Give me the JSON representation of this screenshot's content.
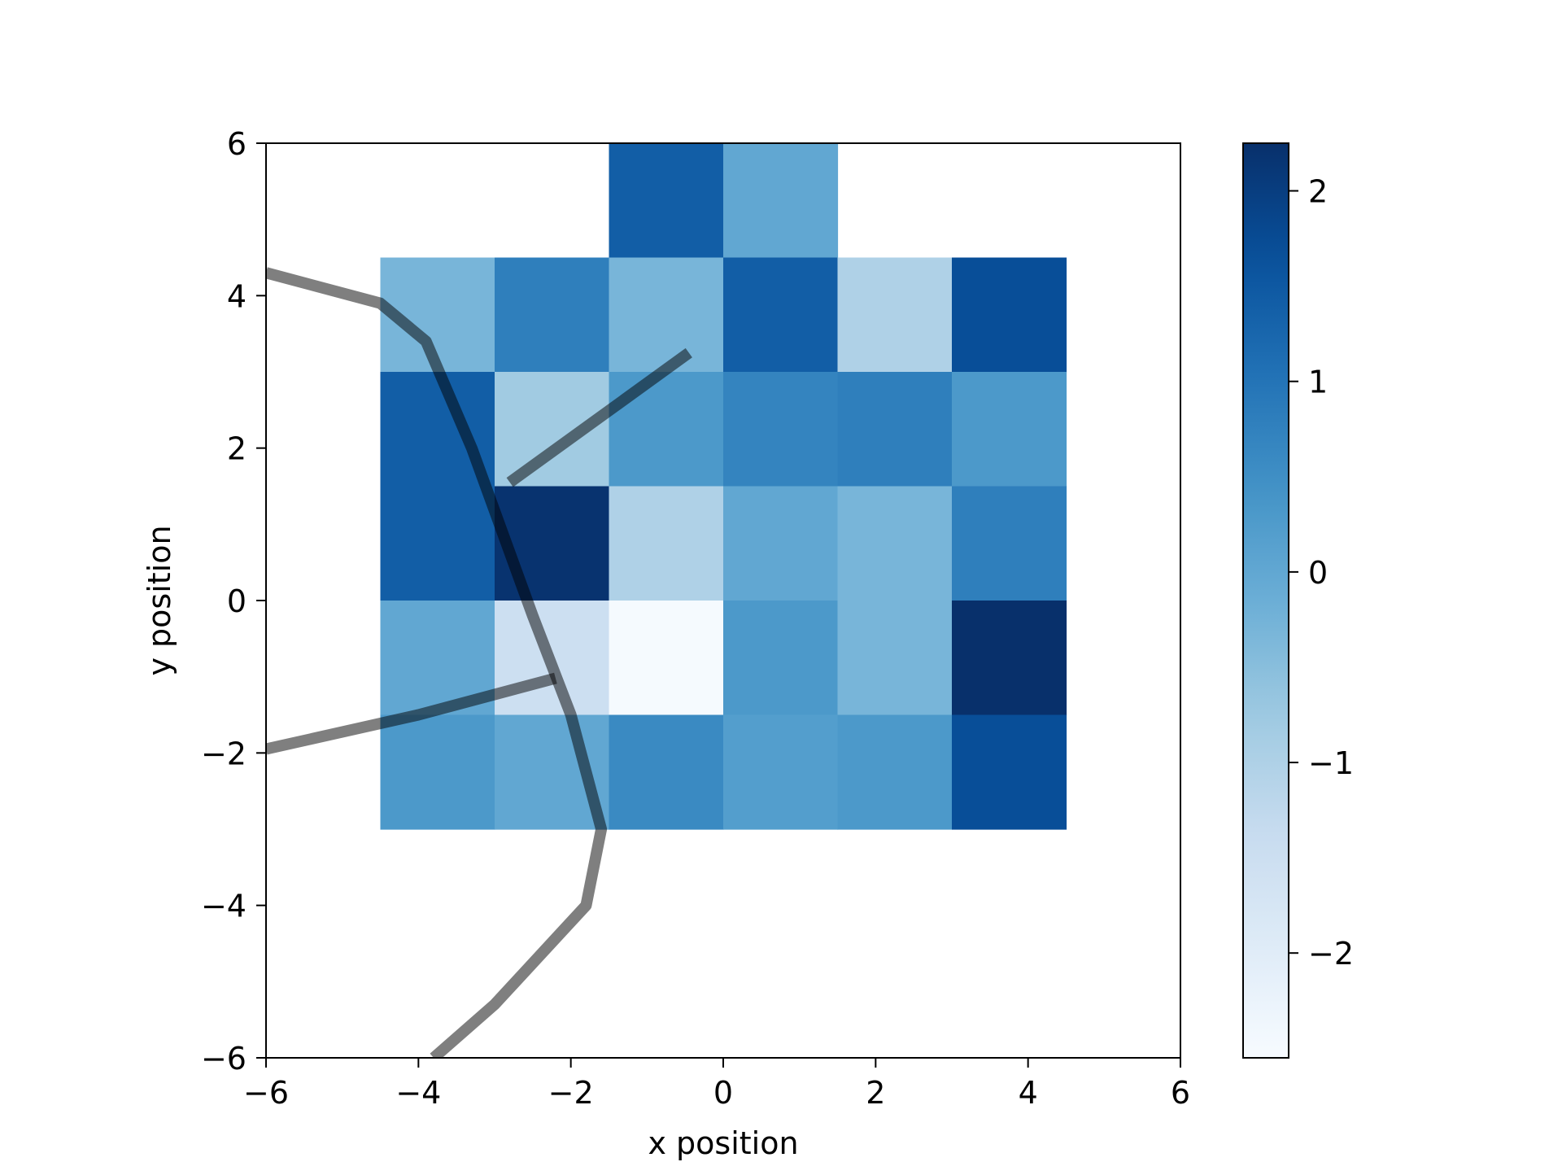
{
  "chart_data": {
    "type": "heatmap",
    "title": "",
    "xlabel": "x position",
    "ylabel": "y position",
    "xlim": [
      -6,
      6
    ],
    "ylim": [
      -6,
      6
    ],
    "xticks": [
      -6,
      -4,
      -2,
      0,
      2,
      4,
      6
    ],
    "yticks": [
      -6,
      -4,
      -2,
      0,
      2,
      4,
      6
    ],
    "xtick_labels": [
      "−6",
      "−4",
      "−2",
      "0",
      "2",
      "4",
      "6"
    ],
    "ytick_labels": [
      "−6",
      "−4",
      "−2",
      "0",
      "2",
      "4",
      "6"
    ],
    "colormap": "Blues",
    "colorbar": {
      "range": [
        -2.55,
        2.25
      ],
      "ticks": [
        -2,
        -1,
        0,
        1,
        2
      ],
      "tick_labels": [
        "−2",
        "−1",
        "0",
        "1",
        "2"
      ]
    },
    "cell_size": 1.5,
    "cells": [
      {
        "x0": -1.5,
        "y0": 4.5,
        "value": 1.4
      },
      {
        "x0": 0,
        "y0": 4.5,
        "value": 0.0
      },
      {
        "x0": -4.5,
        "y0": 3,
        "value": -0.3
      },
      {
        "x0": -3,
        "y0": 3,
        "value": 0.8
      },
      {
        "x0": -1.5,
        "y0": 3,
        "value": -0.3
      },
      {
        "x0": 0,
        "y0": 3,
        "value": 1.4
      },
      {
        "x0": 1.5,
        "y0": 3,
        "value": -1.0
      },
      {
        "x0": 3,
        "y0": 3,
        "value": 1.7
      },
      {
        "x0": -4.5,
        "y0": 1.5,
        "value": 1.4
      },
      {
        "x0": -3,
        "y0": 1.5,
        "value": -0.8
      },
      {
        "x0": -1.5,
        "y0": 1.5,
        "value": 0.3
      },
      {
        "x0": 0,
        "y0": 1.5,
        "value": 0.7
      },
      {
        "x0": 1.5,
        "y0": 1.5,
        "value": 0.8
      },
      {
        "x0": 3,
        "y0": 1.5,
        "value": 0.3
      },
      {
        "x0": -4.5,
        "y0": 0,
        "value": 1.4
      },
      {
        "x0": -3,
        "y0": 0,
        "value": 2.2
      },
      {
        "x0": -1.5,
        "y0": 0,
        "value": -1.0
      },
      {
        "x0": 0,
        "y0": 0,
        "value": 0.0
      },
      {
        "x0": 1.5,
        "y0": 0,
        "value": -0.3
      },
      {
        "x0": 3,
        "y0": 0,
        "value": 0.8
      },
      {
        "x0": -4.5,
        "y0": -1.5,
        "value": 0.0
      },
      {
        "x0": -3,
        "y0": -1.5,
        "value": -1.5
      },
      {
        "x0": -1.5,
        "y0": -1.5,
        "value": -2.5
      },
      {
        "x0": 0,
        "y0": -1.5,
        "value": 0.3
      },
      {
        "x0": 1.5,
        "y0": -1.5,
        "value": -0.3
      },
      {
        "x0": 3,
        "y0": -1.5,
        "value": 2.25
      },
      {
        "x0": -4.5,
        "y0": -3,
        "value": 0.3
      },
      {
        "x0": -3,
        "y0": -3,
        "value": 0.0
      },
      {
        "x0": -1.5,
        "y0": -3,
        "value": 0.6
      },
      {
        "x0": 0,
        "y0": -3,
        "value": 0.2
      },
      {
        "x0": 1.5,
        "y0": -3,
        "value": 0.3
      },
      {
        "x0": 3,
        "y0": -3,
        "value": 1.7
      }
    ],
    "lines": [
      {
        "points": [
          [
            -6.0,
            4.3
          ],
          [
            -4.5,
            3.9
          ],
          [
            -3.9,
            3.4
          ],
          [
            -3.3,
            2.0
          ],
          [
            -2.5,
            -0.2
          ],
          [
            -2.0,
            -1.5
          ],
          [
            -1.6,
            -3.0
          ],
          [
            -1.8,
            -4.0
          ],
          [
            -3.0,
            -5.3
          ],
          [
            -3.8,
            -6.0
          ]
        ]
      },
      {
        "points": [
          [
            -6.0,
            -1.95
          ],
          [
            -4.0,
            -1.5
          ],
          [
            -2.2,
            -1.02
          ]
        ]
      },
      {
        "points": [
          [
            -2.8,
            1.55
          ],
          [
            -0.45,
            3.25
          ]
        ]
      }
    ],
    "line_color": "#000000",
    "line_opacity": 0.5
  }
}
